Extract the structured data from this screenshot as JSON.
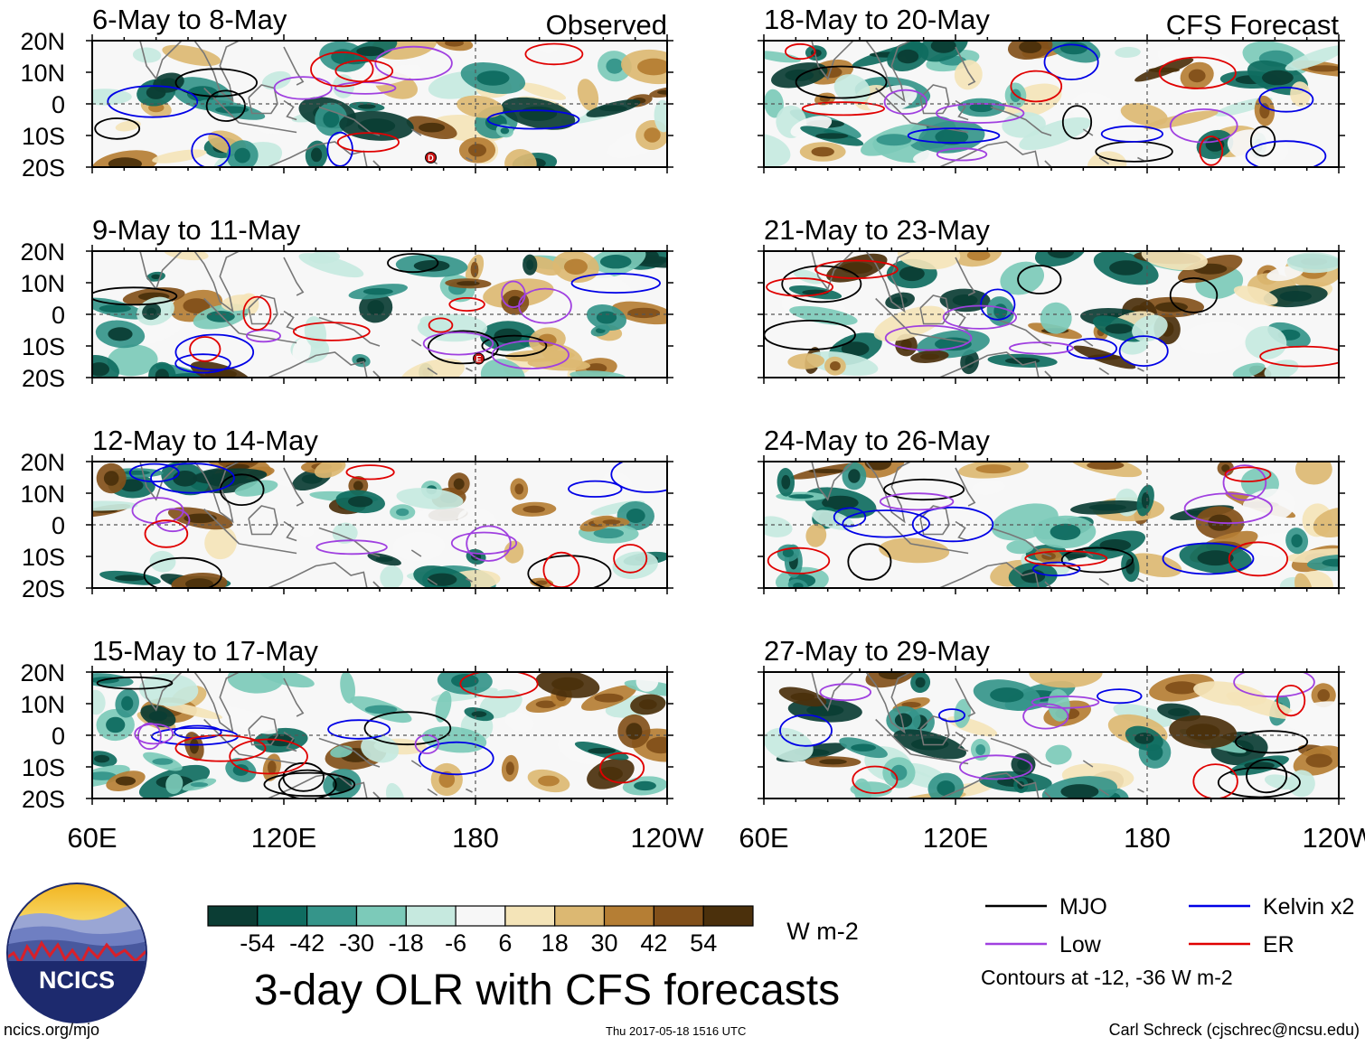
{
  "figure": {
    "main_title": "3-day OLR with CFS forecasts",
    "observed_label": "Observed",
    "forecast_label": "CFS Forecast",
    "site": "ncics.org/mjo",
    "timestamp": "Thu 2017-05-18 1516 UTC",
    "credit": "Carl Schreck (cjschrec@ncsu.edu)",
    "logo_text": "NCICS"
  },
  "chart_data": {
    "type": "heatmap",
    "variable": "OLR anomaly",
    "units": "W m-2",
    "lon_ticks": [
      "60E",
      "120E",
      "180",
      "120W"
    ],
    "lat_ticks": [
      "20N",
      "10N",
      "0",
      "10S",
      "20S"
    ],
    "lon_range": [
      60,
      240
    ],
    "lat_range": [
      -20,
      20
    ],
    "colorbar": {
      "levels": [
        "-54",
        "-42",
        "-30",
        "-18",
        "-6",
        "6",
        "18",
        "30",
        "42",
        "54"
      ],
      "colors": [
        "#0b3d34",
        "#0f6c60",
        "#35958a",
        "#7ccab9",
        "#c6e9df",
        "#f7f7f7",
        "#f4e4b8",
        "#dcb872",
        "#b57e34",
        "#82501a",
        "#4b300c"
      ],
      "units_label": "W m-2"
    },
    "legend": {
      "entries": [
        {
          "name": "MJO",
          "color": "#000000"
        },
        {
          "name": "Kelvin x2",
          "color": "#0000e6"
        },
        {
          "name": "Low",
          "color": "#a040e0"
        },
        {
          "name": "ER",
          "color": "#e00000"
        }
      ],
      "note": "Contours at -12, -36 W m-2"
    },
    "panels": [
      {
        "title": "6-May to 8-May",
        "source": "Observed",
        "markers": [
          {
            "label": "D",
            "lon": 166,
            "lat": -17
          }
        ]
      },
      {
        "title": "9-May to 11-May",
        "source": "Observed",
        "markers": [
          {
            "label": "E",
            "lon": 181,
            "lat": -14
          }
        ]
      },
      {
        "title": "12-May to 14-May",
        "source": "Observed",
        "markers": []
      },
      {
        "title": "15-May to 17-May",
        "source": "Observed",
        "markers": []
      },
      {
        "title": "18-May to 20-May",
        "source": "CFS Forecast",
        "markers": []
      },
      {
        "title": "21-May to 23-May",
        "source": "CFS Forecast",
        "markers": []
      },
      {
        "title": "24-May to 26-May",
        "source": "CFS Forecast",
        "markers": []
      },
      {
        "title": "27-May to 29-May",
        "source": "CFS Forecast",
        "markers": []
      }
    ]
  }
}
